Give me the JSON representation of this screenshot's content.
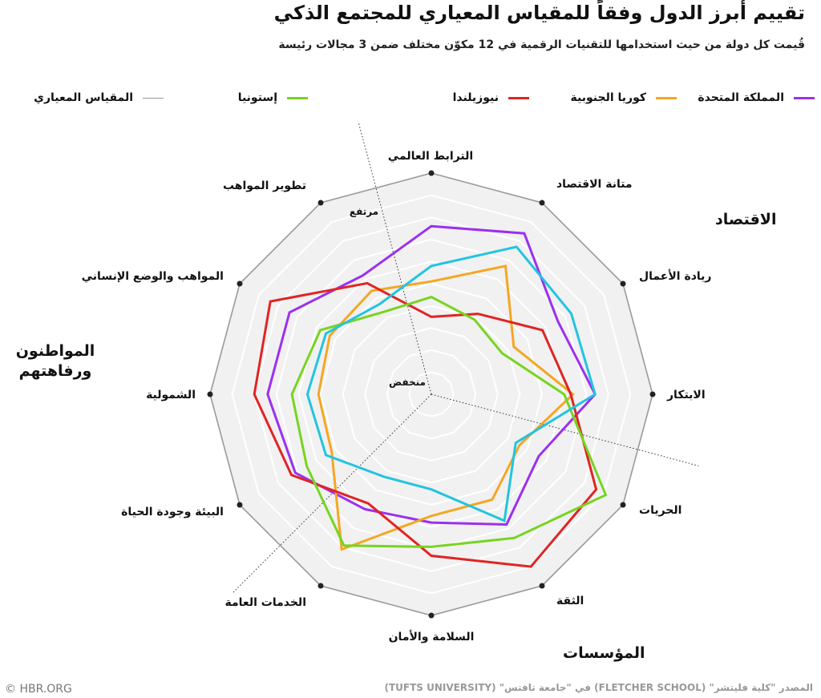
{
  "header": {
    "title": "تقييم أبرز الدول وفقاً للمقياس المعياري للمجتمع الذكي",
    "subtitle": "قُيمت كل دولة من حيث استخدامها للتقنيات الرقمية في 12 مكوّن مختلف ضمن 3 مجالات رئيسة"
  },
  "legend": {
    "uk": "المملكة المتحدة",
    "korea": "كوريا الجنوبية",
    "nz": "نيوزيلندا",
    "estonia": "إستونيا",
    "benchmark": "المقياس المعياري"
  },
  "groups": {
    "economy": "الاقتصاد",
    "institutions": "المؤسسات",
    "citizens": "المواطنون ورفاهتهم"
  },
  "footer": {
    "credit": "© HBR.ORG",
    "source": "المصدر \"كلية فليتشر\" (FLETCHER SCHOOL) في \"جامعة تافتس\" (TUFTS UNIVERSITY)"
  },
  "chart_data": {
    "type": "radar",
    "axes": [
      "الترابط العالمي",
      "متانة الاقتصاد",
      "ريادة الأعمال",
      "الابتكار",
      "الحريات",
      "الثقة",
      "السلامة والأمان",
      "الخدمات العامة",
      "البيئة وجودة الحياة",
      "الشمولية",
      "المواهب والوضع الإنساني",
      "تطوير المواهب"
    ],
    "scale_labels": {
      "high": "مرتفع",
      "low": "منخفض"
    },
    "range": [
      0,
      1
    ],
    "rings": 10,
    "series": [
      {
        "name": "المملكة المتحدة",
        "color": "#9b30f0",
        "values": [
          0.76,
          0.84,
          0.66,
          0.74,
          0.56,
          0.68,
          0.58,
          0.6,
          0.71,
          0.74,
          0.74,
          0.62
        ]
      },
      {
        "name": "كوريا الجنوبية",
        "color": "#f5a623",
        "values": [
          0.51,
          0.67,
          0.43,
          0.64,
          0.46,
          0.55,
          0.55,
          0.81,
          0.52,
          0.51,
          0.53,
          0.54
        ]
      },
      {
        "name": "نيوزيلندا",
        "color": "#e02424",
        "values": [
          0.35,
          0.42,
          0.58,
          0.63,
          0.86,
          0.9,
          0.73,
          0.57,
          0.73,
          0.8,
          0.84,
          0.58
        ]
      },
      {
        "name": "إستونيا",
        "color": "#77d420",
        "values": [
          0.44,
          0.39,
          0.37,
          0.6,
          0.91,
          0.75,
          0.69,
          0.79,
          0.65,
          0.63,
          0.58,
          0.43
        ]
      },
      {
        "name": "",
        "color": "#22c4e0",
        "values": [
          0.58,
          0.77,
          0.73,
          0.74,
          0.44,
          0.66,
          0.43,
          0.43,
          0.55,
          0.56,
          0.55,
          0.47
        ]
      }
    ],
    "benchmark": {
      "name": "المقياس المعياري",
      "color": "#9a9a9a",
      "value": 1.0
    }
  }
}
